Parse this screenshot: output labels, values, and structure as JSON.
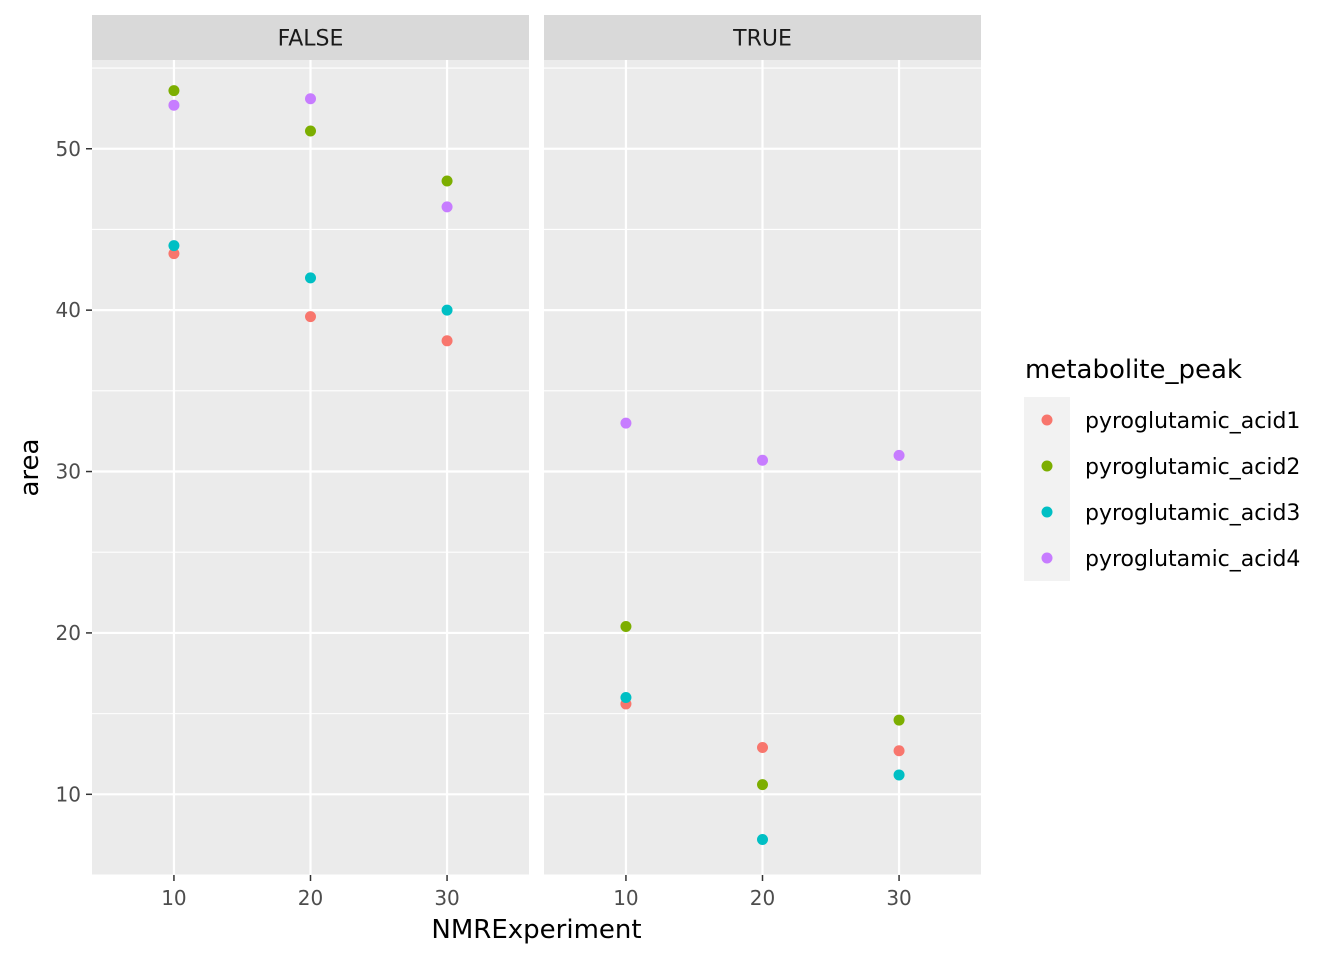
{
  "chart_data": {
    "type": "scatter",
    "facet_labels": [
      "FALSE",
      "TRUE"
    ],
    "xlabel": "NMRExperiment",
    "ylabel": "area",
    "x_ticks": [
      10,
      20,
      30
    ],
    "y_ticks": [
      10,
      20,
      30,
      40,
      50
    ],
    "x_ticks_text": [
      "10",
      "20",
      "30"
    ],
    "y_ticks_text": [
      "10",
      "20",
      "30",
      "40",
      "50"
    ],
    "xlim": [
      4,
      36
    ],
    "ylim": [
      5,
      55.5
    ],
    "grid": true,
    "legend": {
      "title": "metabolite_peak",
      "position": "right"
    },
    "series": [
      {
        "name": "pyroglutamic_acid1",
        "color": "#F8766D",
        "panels": [
          {
            "facet": "FALSE",
            "x": [
              10,
              20,
              30
            ],
            "y": [
              43.5,
              39.6,
              38.1
            ]
          },
          {
            "facet": "TRUE",
            "x": [
              10,
              20,
              30
            ],
            "y": [
              15.6,
              12.9,
              12.7
            ]
          }
        ]
      },
      {
        "name": "pyroglutamic_acid2",
        "color": "#7CAE00",
        "panels": [
          {
            "facet": "FALSE",
            "x": [
              10,
              20,
              30
            ],
            "y": [
              53.6,
              51.1,
              48.0
            ]
          },
          {
            "facet": "TRUE",
            "x": [
              10,
              20,
              30
            ],
            "y": [
              20.4,
              10.6,
              14.6
            ]
          }
        ]
      },
      {
        "name": "pyroglutamic_acid3",
        "color": "#00BFC4",
        "panels": [
          {
            "facet": "FALSE",
            "x": [
              10,
              20,
              30
            ],
            "y": [
              44.0,
              42.0,
              40.0
            ]
          },
          {
            "facet": "TRUE",
            "x": [
              10,
              20,
              30
            ],
            "y": [
              16.0,
              7.2,
              11.2
            ]
          }
        ]
      },
      {
        "name": "pyroglutamic_acid4",
        "color": "#C77CFF",
        "panels": [
          {
            "facet": "FALSE",
            "x": [
              10,
              20,
              30
            ],
            "y": [
              52.7,
              53.1,
              46.4
            ]
          },
          {
            "facet": "TRUE",
            "x": [
              10,
              20,
              30
            ],
            "y": [
              33.0,
              30.7,
              31.0
            ]
          }
        ]
      }
    ]
  }
}
